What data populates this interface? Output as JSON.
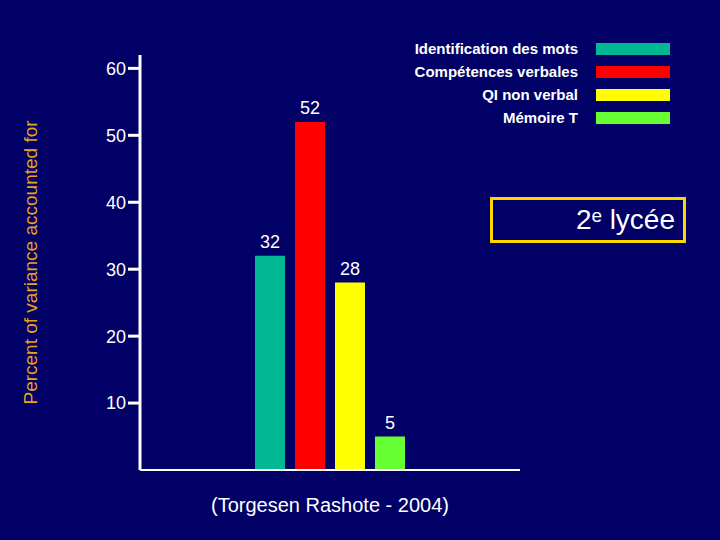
{
  "chart_data": {
    "type": "bar",
    "categories": [
      null
    ],
    "series": [
      {
        "name": "Identification des mots",
        "color": "#00b894",
        "values": [
          32
        ]
      },
      {
        "name": "Compétences verbales",
        "color": "#ff0000",
        "values": [
          52
        ]
      },
      {
        "name": "QI non verbal",
        "color": "#ffff00",
        "values": [
          28
        ]
      },
      {
        "name": "Mémoire T",
        "color": "#66ff33",
        "values": [
          5
        ]
      }
    ],
    "y_label": "Percent of variance accounted for",
    "ylim": [
      0,
      62
    ],
    "yticks": [
      10,
      20,
      30,
      40,
      50,
      60
    ],
    "grid": false,
    "data_labels": true,
    "tick_labels": "y",
    "legend": "top right",
    "annotation": "2ᵉ lycée",
    "source": "(Torgesen Rashote - 2004)"
  }
}
